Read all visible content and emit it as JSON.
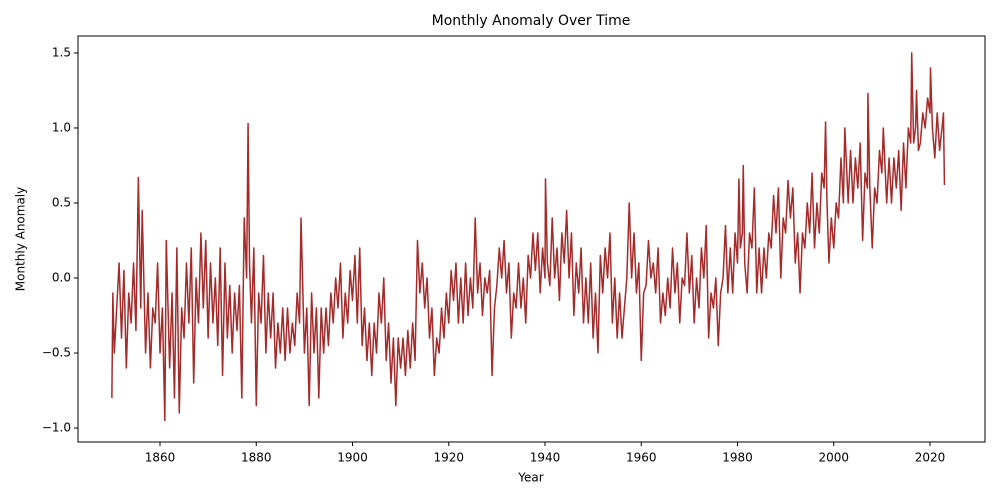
{
  "chart_data": {
    "type": "line",
    "title": "Monthly Anomaly Over Time",
    "x_label": "Year",
    "y_label": "Monthly Anomaly",
    "color": "#a52a2a",
    "xlim": [
      1842.96,
      2031.43
    ],
    "ylim": [
      -1.093,
      1.613
    ],
    "xticks": [
      1860,
      1880,
      1900,
      1920,
      1940,
      1960,
      1980,
      2000,
      2020
    ],
    "yticks": [
      {
        "value": -1.0,
        "label": "−1.0"
      },
      {
        "value": -0.5,
        "label": "−0.5"
      },
      {
        "value": 0.0,
        "label": "0.0"
      },
      0.5,
      {
        "value": 1.0,
        "label": "1.0"
      },
      1.5
    ],
    "x": [
      1850,
      1850.2,
      1850.5,
      1851,
      1851.5,
      1852,
      1852.5,
      1853,
      1853.5,
      1854,
      1854.5,
      1855,
      1855.5,
      1856,
      1856.3,
      1857,
      1857.5,
      1858,
      1858.5,
      1859,
      1859.5,
      1860,
      1860.5,
      1861,
      1861.3,
      1862,
      1862.5,
      1863,
      1863.5,
      1864,
      1864.5,
      1865,
      1865.5,
      1866,
      1866.5,
      1867,
      1867.5,
      1868,
      1868.5,
      1869,
      1869.5,
      1870,
      1870.5,
      1871,
      1871.5,
      1872,
      1872.5,
      1873,
      1873.5,
      1874,
      1874.5,
      1875,
      1875.5,
      1876,
      1876.5,
      1877,
      1877.5,
      1878,
      1878.3,
      1878.6,
      1879,
      1879.5,
      1880,
      1880.5,
      1881,
      1881.5,
      1882,
      1882.5,
      1883,
      1883.5,
      1884,
      1884.5,
      1885,
      1885.5,
      1886,
      1886.5,
      1887,
      1887.5,
      1888,
      1888.5,
      1889,
      1889.3,
      1890,
      1890.5,
      1891,
      1891.5,
      1892,
      1892.5,
      1893,
      1893.5,
      1894,
      1894.5,
      1895,
      1895.5,
      1896,
      1896.5,
      1897,
      1897.5,
      1898,
      1898.5,
      1899,
      1899.5,
      1900,
      1900.5,
      1901,
      1901.5,
      1902,
      1902.5,
      1903,
      1903.5,
      1904,
      1904.5,
      1905,
      1905.5,
      1906,
      1906.5,
      1907,
      1907.5,
      1908,
      1908.5,
      1909,
      1909.5,
      1910,
      1910.5,
      1911,
      1911.5,
      1912,
      1912.5,
      1913,
      1913.5,
      1914,
      1914.5,
      1915,
      1915.5,
      1916,
      1916.5,
      1917,
      1917.5,
      1918,
      1918.5,
      1919,
      1919.5,
      1920,
      1920.5,
      1921,
      1921.5,
      1922,
      1922.5,
      1923,
      1923.5,
      1924,
      1924.5,
      1925,
      1925.5,
      1926,
      1926.5,
      1927,
      1927.5,
      1928,
      1928.5,
      1929,
      1929.5,
      1930,
      1930.5,
      1931,
      1931.5,
      1932,
      1932.5,
      1933,
      1933.5,
      1934,
      1934.5,
      1935,
      1935.5,
      1936,
      1936.5,
      1937,
      1937.5,
      1938,
      1938.5,
      1939,
      1939.5,
      1940,
      1940.1,
      1940.5,
      1941,
      1941.5,
      1942,
      1942.5,
      1943,
      1943.5,
      1944,
      1944.5,
      1945,
      1945.5,
      1946,
      1946.5,
      1947,
      1947.5,
      1948,
      1948.5,
      1949,
      1949.5,
      1950,
      1950.5,
      1951,
      1951.5,
      1952,
      1952.5,
      1953,
      1953.5,
      1954,
      1954.5,
      1955,
      1955.5,
      1956,
      1956.5,
      1957,
      1957.5,
      1958,
      1958.5,
      1959,
      1959.5,
      1960,
      1960.5,
      1961,
      1961.5,
      1962,
      1962.5,
      1963,
      1963.5,
      1964,
      1964.5,
      1965,
      1965.5,
      1966,
      1966.5,
      1967,
      1967.5,
      1968,
      1968.5,
      1969,
      1969.5,
      1970,
      1970.5,
      1971,
      1971.5,
      1972,
      1972.5,
      1973,
      1973.5,
      1974,
      1974.5,
      1975,
      1975.5,
      1976,
      1976.5,
      1977,
      1977.5,
      1978,
      1978.5,
      1979,
      1979.5,
      1980,
      1980.3,
      1980.6,
      1981,
      1981.2,
      1981.5,
      1982,
      1982.5,
      1983,
      1983.5,
      1984,
      1984.5,
      1985,
      1985.5,
      1986,
      1986.5,
      1987,
      1987.5,
      1988,
      1988.5,
      1989,
      1989.5,
      1990,
      1990.5,
      1991,
      1991.5,
      1992,
      1992.5,
      1993,
      1993.5,
      1994,
      1994.5,
      1995,
      1995.5,
      1996,
      1996.5,
      1997,
      1997.5,
      1998,
      1998.3,
      1998.6,
      1999,
      1999.5,
      2000,
      2000.5,
      2001,
      2001.5,
      2002,
      2002.3,
      2003,
      2003.5,
      2004,
      2004.5,
      2005,
      2005.5,
      2006,
      2006.5,
      2007,
      2007.1,
      2007.5,
      2008,
      2008.5,
      2009,
      2009.5,
      2010,
      2010.3,
      2011,
      2011.5,
      2012,
      2012.5,
      2013,
      2013.5,
      2014,
      2014.5,
      2015,
      2015.5,
      2016,
      2016.2,
      2016.6,
      2017,
      2017.2,
      2017.6,
      2018,
      2018.5,
      2019,
      2019.5,
      2020,
      2020.1,
      2020.5,
      2021,
      2021.5,
      2022,
      2022.5,
      2022.8,
      2023
    ],
    "values": [
      -0.8,
      -0.1,
      -0.5,
      -0.2,
      0.1,
      -0.4,
      0.05,
      -0.6,
      -0.1,
      -0.3,
      0.1,
      -0.35,
      0.67,
      -0.2,
      0.45,
      -0.5,
      -0.1,
      -0.6,
      -0.2,
      -0.3,
      0.1,
      -0.5,
      -0.2,
      -0.95,
      0.25,
      -0.6,
      -0.1,
      -0.8,
      0.2,
      -0.9,
      -0.2,
      -0.4,
      0.1,
      -0.3,
      0.2,
      -0.7,
      0.0,
      -0.3,
      0.3,
      -0.2,
      0.25,
      -0.4,
      0.1,
      -0.3,
      0.0,
      -0.45,
      0.2,
      -0.65,
      0.1,
      -0.4,
      -0.05,
      -0.5,
      -0.1,
      -0.35,
      -0.05,
      -0.8,
      0.4,
      0.0,
      1.03,
      0.1,
      -0.3,
      0.2,
      -0.85,
      -0.1,
      -0.3,
      0.15,
      -0.5,
      -0.1,
      -0.4,
      -0.1,
      -0.6,
      -0.3,
      -0.5,
      -0.2,
      -0.55,
      -0.2,
      -0.5,
      -0.3,
      -0.45,
      -0.1,
      -0.3,
      0.4,
      -0.5,
      -0.2,
      -0.85,
      -0.1,
      -0.5,
      -0.2,
      -0.8,
      -0.2,
      -0.5,
      -0.2,
      -0.45,
      -0.1,
      -0.3,
      0.0,
      -0.2,
      0.1,
      -0.4,
      -0.1,
      -0.3,
      0.05,
      -0.15,
      0.15,
      -0.3,
      0.2,
      -0.45,
      -0.2,
      -0.55,
      -0.3,
      -0.65,
      -0.3,
      -0.5,
      -0.1,
      -0.3,
      0.0,
      -0.55,
      -0.3,
      -0.7,
      -0.4,
      -0.85,
      -0.4,
      -0.6,
      -0.4,
      -0.65,
      -0.35,
      -0.6,
      -0.3,
      -0.55,
      0.25,
      -0.1,
      0.1,
      -0.2,
      0.0,
      -0.4,
      -0.2,
      -0.65,
      -0.4,
      -0.5,
      -0.2,
      -0.4,
      -0.1,
      -0.3,
      0.05,
      -0.15,
      0.1,
      -0.3,
      0.0,
      -0.3,
      0.1,
      -0.25,
      0.0,
      -0.2,
      0.4,
      -0.1,
      0.1,
      -0.25,
      0.0,
      -0.1,
      0.05,
      -0.65,
      -0.2,
      -0.05,
      0.2,
      0.0,
      0.25,
      -0.1,
      0.1,
      -0.4,
      -0.1,
      -0.2,
      0.1,
      -0.2,
      0.0,
      -0.3,
      0.15,
      0.0,
      0.3,
      0.05,
      0.3,
      -0.1,
      0.2,
      0.0,
      0.66,
      0.1,
      -0.05,
      0.4,
      0.0,
      0.2,
      -0.15,
      0.3,
      0.1,
      0.45,
      0.0,
      0.3,
      -0.25,
      0.1,
      -0.1,
      0.2,
      -0.3,
      0.0,
      -0.3,
      0.1,
      -0.4,
      -0.1,
      -0.5,
      0.15,
      -0.1,
      0.2,
      0.0,
      0.3,
      -0.3,
      0.0,
      -0.4,
      -0.1,
      -0.4,
      -0.2,
      0.0,
      0.5,
      0.0,
      0.3,
      -0.1,
      0.1,
      -0.55,
      -0.1,
      -0.05,
      0.25,
      0.0,
      0.1,
      -0.1,
      0.2,
      -0.3,
      -0.1,
      -0.25,
      0.0,
      -0.2,
      0.2,
      -0.1,
      0.1,
      -0.3,
      0.0,
      -0.05,
      0.3,
      -0.1,
      0.15,
      -0.3,
      0.0,
      -0.2,
      0.2,
      0.0,
      0.35,
      -0.4,
      -0.1,
      -0.2,
      0.0,
      -0.45,
      -0.1,
      0.0,
      0.35,
      -0.1,
      0.2,
      -0.1,
      0.3,
      0.1,
      0.66,
      0.2,
      0.3,
      0.75,
      0.1,
      -0.1,
      0.3,
      0.2,
      0.6,
      -0.1,
      0.2,
      -0.1,
      0.2,
      0.0,
      0.3,
      0.2,
      0.55,
      0.3,
      0.6,
      0.0,
      0.4,
      0.3,
      0.65,
      0.4,
      0.6,
      0.1,
      0.3,
      -0.1,
      0.3,
      0.2,
      0.5,
      0.3,
      0.7,
      0.2,
      0.5,
      0.3,
      0.7,
      0.6,
      1.04,
      0.5,
      0.1,
      0.4,
      0.2,
      0.5,
      0.4,
      0.8,
      0.5,
      1.0,
      0.5,
      0.85,
      0.5,
      0.8,
      0.6,
      0.9,
      0.25,
      0.7,
      0.6,
      1.23,
      0.6,
      0.2,
      0.6,
      0.5,
      0.85,
      0.7,
      1.0,
      0.5,
      0.8,
      0.5,
      0.8,
      0.6,
      0.85,
      0.45,
      0.9,
      0.6,
      1.0,
      0.9,
      1.5,
      0.9,
      1.0,
      1.25,
      0.85,
      0.9,
      1.1,
      1.0,
      1.2,
      1.1,
      1.4,
      1.0,
      0.8,
      1.1,
      0.85,
      1.0,
      1.1,
      0.62
    ]
  }
}
